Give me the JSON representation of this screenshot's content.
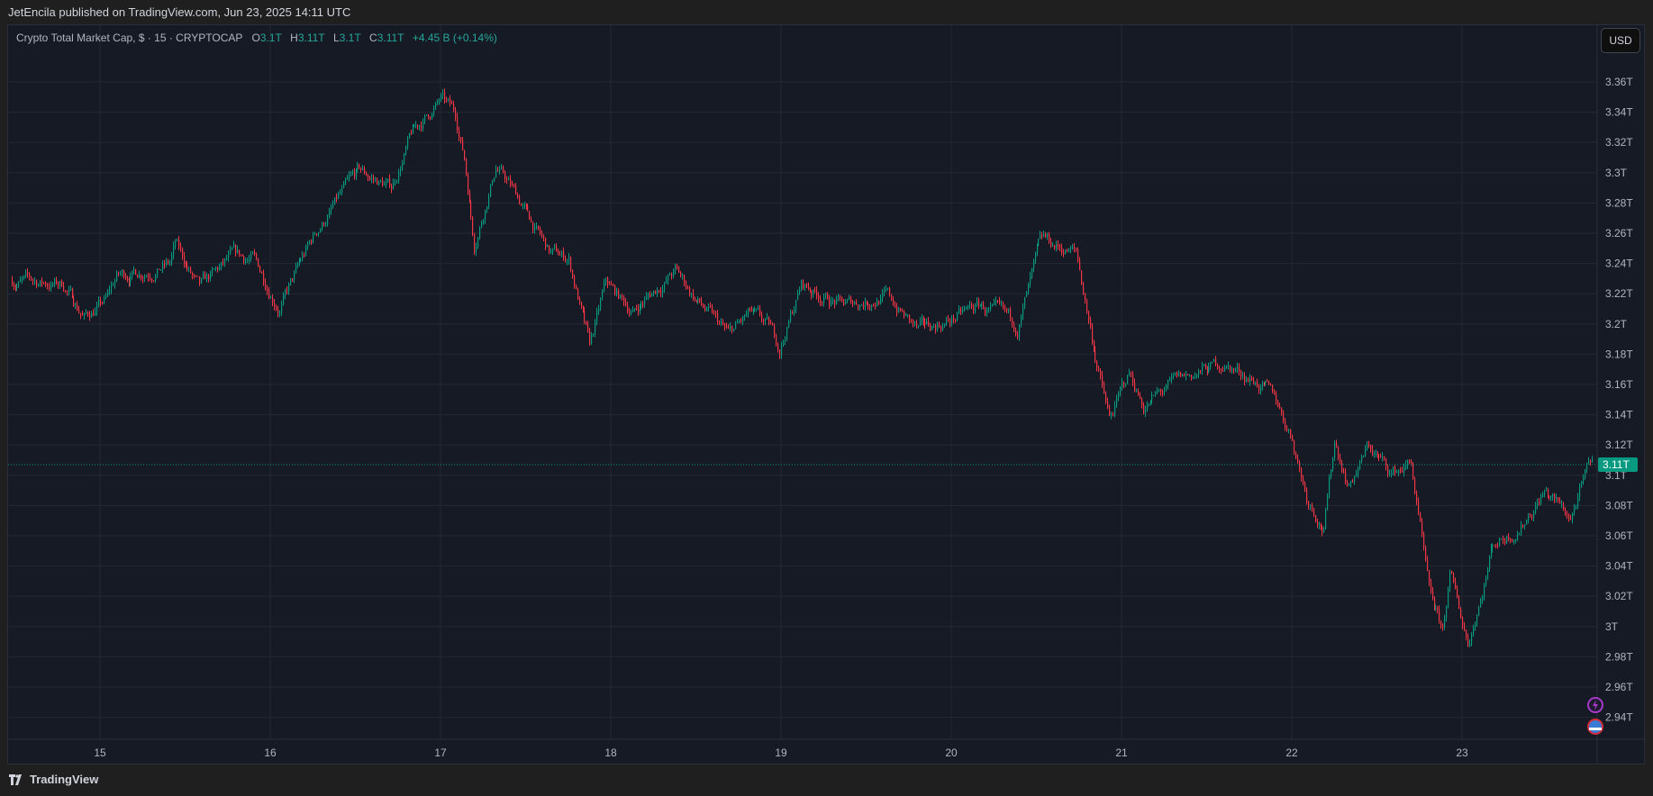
{
  "header": {
    "published": "JetEncila published on TradingView.com, Jun 23, 2025 14:11 UTC"
  },
  "legend": {
    "symbol": "Crypto Total Market Cap, $ · 15 · CRYPTOCAP",
    "o_label": "O",
    "o": "3.1T",
    "h_label": "H",
    "h": "3.11T",
    "l_label": "L",
    "l": "3.1T",
    "c_label": "C",
    "c": "3.11T",
    "change": "+4.45 B (+0.14%)"
  },
  "currency_button": "USD",
  "current_price_label": "3.11T",
  "footer": {
    "brand": "TradingView"
  },
  "colors": {
    "up": "#089981",
    "down": "#f23645",
    "background": "#161a25",
    "grid": "#242833",
    "text": "#b2b5be"
  },
  "icons": [
    "lightning-event-icon",
    "us-flag-event-icon",
    "tradingview-logo-icon"
  ],
  "chart_data": {
    "type": "candlestick",
    "interval": "15",
    "current_price": 3.107,
    "price_ticks": [
      "3.36T",
      "3.34T",
      "3.32T",
      "3.3T",
      "3.28T",
      "3.26T",
      "3.24T",
      "3.22T",
      "3.2T",
      "3.18T",
      "3.16T",
      "3.14T",
      "3.12T",
      "3.1T",
      "3.08T",
      "3.06T",
      "3.04T",
      "3.02T",
      "3T",
      "2.98T",
      "2.96T",
      "2.94T"
    ],
    "price_tick_values": [
      3.36,
      3.34,
      3.32,
      3.3,
      3.28,
      3.26,
      3.24,
      3.22,
      3.2,
      3.18,
      3.16,
      3.14,
      3.12,
      3.1,
      3.08,
      3.06,
      3.04,
      3.02,
      3.0,
      2.98,
      2.96,
      2.94
    ],
    "ylim": [
      2.925,
      3.385
    ],
    "time_ticks": [
      "15",
      "16",
      "17",
      "18",
      "19",
      "20",
      "21",
      "22",
      "23"
    ],
    "time_tick_dates": [
      "2025-06-15",
      "2025-06-16",
      "2025-06-17",
      "2025-06-18",
      "2025-06-19",
      "2025-06-20",
      "2025-06-21",
      "2025-06-22",
      "2025-06-23"
    ],
    "xlim": [
      "2025-06-14T11:00",
      "2025-06-23T18:30"
    ],
    "grid": true,
    "approx_price_path": [
      [
        "2025-06-14T11:30",
        3.229
      ],
      [
        "2025-06-14T18:45",
        3.226
      ],
      [
        "2025-06-14T21:45",
        3.205
      ],
      [
        "2025-06-15T00:45",
        3.215
      ],
      [
        "2025-06-15T02:15",
        3.231
      ],
      [
        "2025-06-15T09:45",
        3.24
      ],
      [
        "2025-06-15T10:30",
        3.252
      ],
      [
        "2025-06-15T14:00",
        3.222
      ],
      [
        "2025-06-15T18:30",
        3.243
      ],
      [
        "2025-06-15T21:30",
        3.243
      ],
      [
        "2025-06-16T01:15",
        3.212
      ],
      [
        "2025-06-16T05:00",
        3.247
      ],
      [
        "2025-06-16T06:30",
        3.261
      ],
      [
        "2025-06-16T09:30",
        3.282
      ],
      [
        "2025-06-16T12:30",
        3.3
      ],
      [
        "2025-06-16T17:00",
        3.29
      ],
      [
        "2025-06-16T19:45",
        3.324
      ],
      [
        "2025-06-16T22:45",
        3.341
      ],
      [
        "2025-06-17T00:00",
        3.348
      ],
      [
        "2025-06-17T02:00",
        3.338
      ],
      [
        "2025-06-17T03:15",
        3.31
      ],
      [
        "2025-06-17T04:45",
        3.254
      ],
      [
        "2025-06-17T07:45",
        3.305
      ],
      [
        "2025-06-17T10:45",
        3.284
      ],
      [
        "2025-06-17T15:15",
        3.247
      ],
      [
        "2025-06-17T18:00",
        3.243
      ],
      [
        "2025-06-17T21:00",
        3.184
      ],
      [
        "2025-06-17T23:15",
        3.226
      ],
      [
        "2025-06-18T03:00",
        3.208
      ],
      [
        "2025-06-18T09:00",
        3.235
      ],
      [
        "2025-06-18T12:00",
        3.216
      ],
      [
        "2025-06-18T16:30",
        3.192
      ],
      [
        "2025-06-18T19:30",
        3.206
      ],
      [
        "2025-06-18T22:30",
        3.195
      ],
      [
        "2025-06-18T23:45",
        3.184
      ],
      [
        "2025-06-19T02:45",
        3.226
      ],
      [
        "2025-06-19T08:45",
        3.212
      ],
      [
        "2025-06-19T14:45",
        3.219
      ],
      [
        "2025-06-19T19:15",
        3.195
      ],
      [
        "2025-06-19T23:30",
        3.202
      ],
      [
        "2025-06-20T04:00",
        3.212
      ],
      [
        "2025-06-20T09:15",
        3.198
      ],
      [
        "2025-06-20T12:15",
        3.247
      ],
      [
        "2025-06-20T13:00",
        3.253
      ],
      [
        "2025-06-20T17:30",
        3.247
      ],
      [
        "2025-06-20T19:45",
        3.191
      ],
      [
        "2025-06-20T22:15",
        3.136
      ],
      [
        "2025-06-21T01:00",
        3.167
      ],
      [
        "2025-06-21T03:00",
        3.146
      ],
      [
        "2025-06-21T08:15",
        3.163
      ],
      [
        "2025-06-21T14:15",
        3.174
      ],
      [
        "2025-06-21T18:45",
        3.163
      ],
      [
        "2025-06-21T21:45",
        3.149
      ],
      [
        "2025-06-22T00:00",
        3.125
      ],
      [
        "2025-06-22T02:00",
        3.087
      ],
      [
        "2025-06-22T04:30",
        3.066
      ],
      [
        "2025-06-22T06:00",
        3.122
      ],
      [
        "2025-06-22T08:00",
        3.094
      ],
      [
        "2025-06-22T10:45",
        3.119
      ],
      [
        "2025-06-22T14:00",
        3.101
      ],
      [
        "2025-06-22T16:45",
        3.108
      ],
      [
        "2025-06-22T17:45",
        3.073
      ],
      [
        "2025-06-22T19:15",
        3.02
      ],
      [
        "2025-06-22T21:15",
        2.996
      ],
      [
        "2025-06-22T22:15",
        3.034
      ],
      [
        "2025-06-23T00:45",
        2.989
      ],
      [
        "2025-06-23T01:30",
        3.003
      ],
      [
        "2025-06-23T02:45",
        3.024
      ],
      [
        "2025-06-23T04:15",
        3.055
      ],
      [
        "2025-06-23T08:00",
        3.066
      ],
      [
        "2025-06-23T11:30",
        3.09
      ],
      [
        "2025-06-23T15:15",
        3.072
      ],
      [
        "2025-06-23T18:15",
        3.11
      ]
    ]
  }
}
